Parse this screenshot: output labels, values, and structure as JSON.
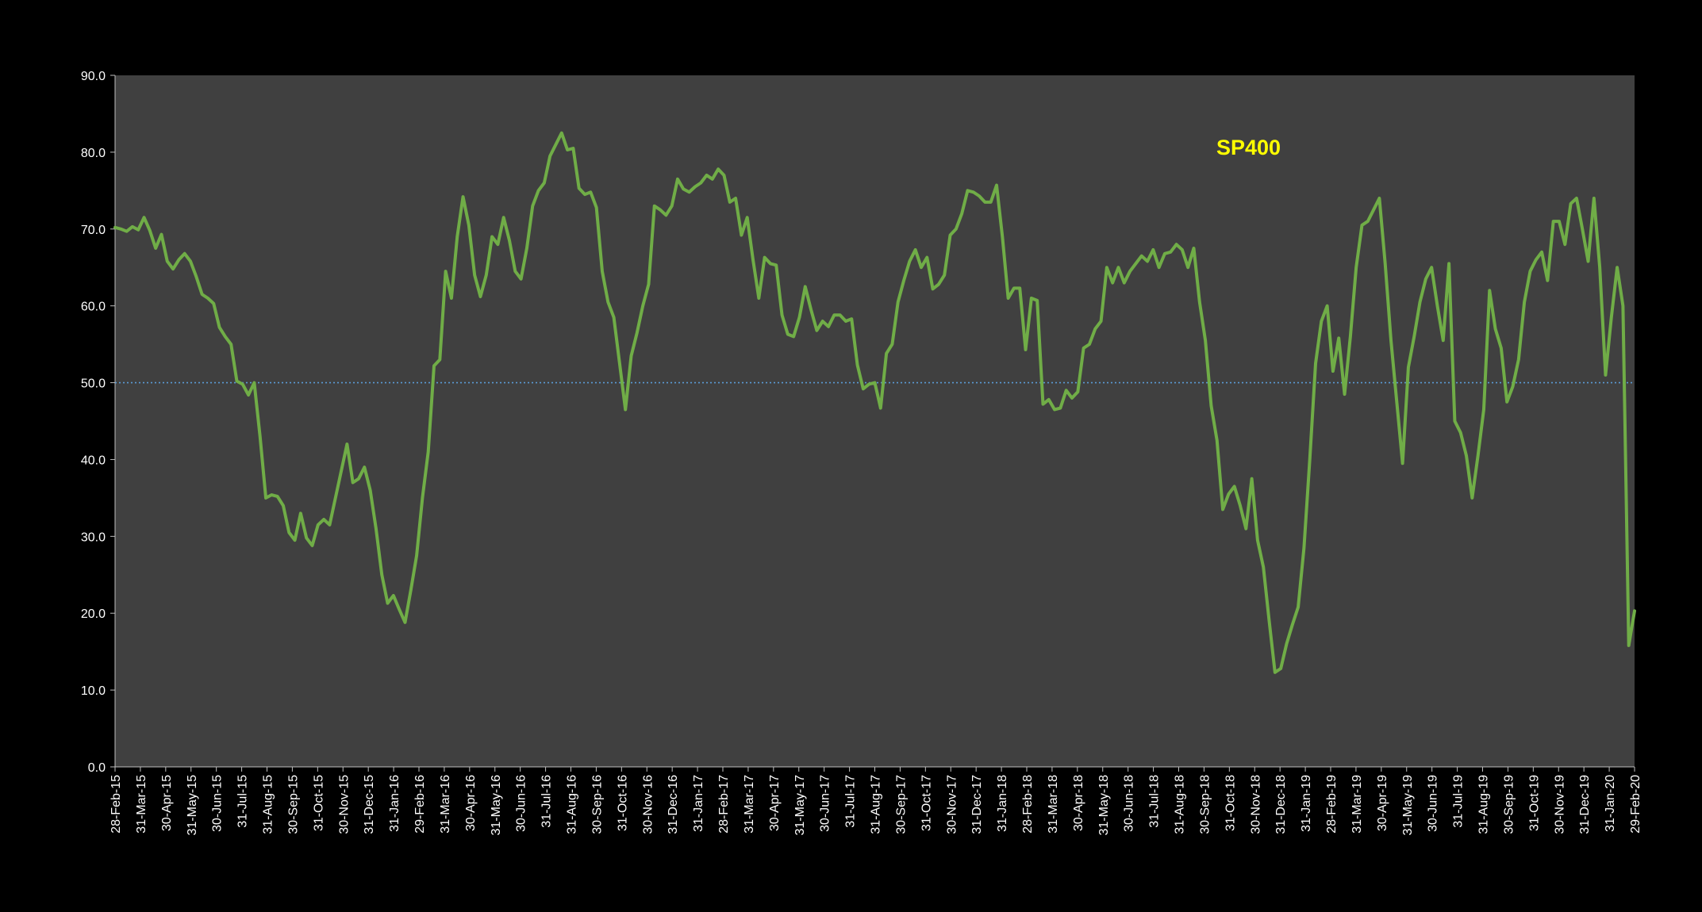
{
  "colors": {
    "background": "#000000",
    "plot_area": "#404040",
    "series_line": "#70ad47",
    "reference_line": "#5b9bd5",
    "text": "#ffffff",
    "series_label": "#ffff00"
  },
  "chart_data": {
    "type": "line",
    "annotation": "SP400",
    "ylim": [
      0,
      90
    ],
    "y_ticks": [
      "0.0",
      "10.0",
      "20.0",
      "30.0",
      "40.0",
      "50.0",
      "60.0",
      "70.0",
      "80.0",
      "90.0"
    ],
    "reference_line": 50,
    "grid": false,
    "legend": "none",
    "x_tick_labels": [
      "28-Feb-15",
      "31-Mar-15",
      "30-Apr-15",
      "31-May-15",
      "30-Jun-15",
      "31-Jul-15",
      "31-Aug-15",
      "30-Sep-15",
      "31-Oct-15",
      "30-Nov-15",
      "31-Dec-15",
      "31-Jan-16",
      "29-Feb-16",
      "31-Mar-16",
      "30-Apr-16",
      "31-May-16",
      "30-Jun-16",
      "31-Jul-16",
      "31-Aug-16",
      "30-Sep-16",
      "31-Oct-16",
      "30-Nov-16",
      "31-Dec-16",
      "31-Jan-17",
      "28-Feb-17",
      "31-Mar-17",
      "30-Apr-17",
      "31-May-17",
      "30-Jun-17",
      "31-Jul-17",
      "31-Aug-17",
      "30-Sep-17",
      "31-Oct-17",
      "30-Nov-17",
      "31-Dec-17",
      "31-Jan-18",
      "28-Feb-18",
      "31-Mar-18",
      "30-Apr-18",
      "31-May-18",
      "30-Jun-18",
      "31-Jul-18",
      "31-Aug-18",
      "30-Sep-18",
      "31-Oct-18",
      "30-Nov-18",
      "31-Dec-18",
      "31-Jan-19",
      "28-Feb-19",
      "31-Mar-19",
      "30-Apr-19",
      "31-May-19",
      "30-Jun-19",
      "31-Jul-19",
      "31-Aug-19",
      "30-Sep-19",
      "31-Oct-19",
      "30-Nov-19",
      "31-Dec-19",
      "31-Jan-20",
      "29-Feb-20"
    ],
    "series": [
      {
        "values": [
          70.2,
          70.0,
          69.7,
          70.3,
          69.9,
          71.5,
          69.8,
          67.5,
          69.3,
          65.8,
          64.8,
          66.0,
          66.8,
          65.8,
          63.8,
          61.5,
          61.0,
          60.3,
          57.2,
          56.0,
          55.0,
          50.2,
          49.8,
          48.4,
          50.0,
          43.0,
          35.0,
          35.4,
          35.2,
          34.0,
          30.5,
          29.5,
          33.0,
          29.8,
          28.8,
          31.5,
          32.2,
          31.5,
          35.0,
          38.5,
          42.0,
          37.0,
          37.5,
          39.0,
          36.0,
          31.0,
          25.0,
          21.3,
          22.3,
          20.5,
          18.8,
          23.0,
          27.5,
          35.0,
          41.0,
          52.2,
          53.0,
          64.5,
          61.0,
          69.0,
          74.2,
          70.5,
          64.0,
          61.2,
          64.0,
          69.0,
          68.0,
          71.5,
          68.5,
          64.5,
          63.5,
          67.5,
          73.0,
          75.0,
          76.0,
          79.5,
          81.0,
          82.5,
          80.3,
          80.5,
          75.3,
          74.5,
          74.8,
          72.8,
          64.5,
          60.5,
          58.5,
          52.5,
          46.5,
          53.5,
          56.5,
          60.0,
          62.8,
          73.0,
          72.5,
          71.8,
          73.0,
          76.5,
          75.2,
          74.8,
          75.5,
          76.0,
          77.0,
          76.5,
          77.8,
          77.0,
          73.5,
          74.0,
          69.2,
          71.5,
          66.0,
          61.0,
          66.3,
          65.5,
          65.3,
          58.8,
          56.3,
          56.0,
          58.5,
          62.5,
          59.5,
          56.8,
          58.0,
          57.3,
          58.8,
          58.8,
          58.0,
          58.3,
          52.3,
          49.2,
          49.8,
          50.0,
          46.7,
          53.8,
          55.0,
          60.5,
          63.3,
          65.8,
          67.3,
          65.0,
          66.3,
          62.2,
          62.8,
          64.0,
          69.2,
          70.0,
          72.0,
          75.0,
          74.8,
          74.3,
          73.5,
          73.5,
          75.7,
          69.0,
          61.0,
          62.3,
          62.3,
          54.3,
          61.0,
          60.7,
          47.2,
          47.8,
          46.5,
          46.7,
          49.0,
          48.0,
          48.8,
          54.5,
          55.0,
          57.0,
          58.0,
          65.0,
          63.0,
          65.0,
          63.0,
          64.5,
          65.5,
          66.5,
          65.8,
          67.3,
          65.0,
          66.8,
          67.0,
          68.0,
          67.3,
          65.0,
          67.5,
          60.5,
          55.5,
          47.0,
          42.5,
          33.5,
          35.5,
          36.5,
          34.0,
          31.0,
          37.5,
          29.5,
          26.0,
          19.0,
          12.3,
          12.8,
          16.0,
          18.5,
          20.8,
          28.5,
          40.0,
          52.5,
          58.0,
          60.0,
          51.5,
          55.8,
          48.5,
          56.0,
          65.0,
          70.5,
          71.0,
          72.5,
          74.0,
          65.5,
          55.5,
          47.5,
          39.5,
          52.0,
          56.0,
          60.5,
          63.5,
          65.0,
          60.0,
          55.5,
          65.5,
          45.0,
          43.5,
          40.5,
          35.0,
          40.5,
          46.5,
          62.0,
          57.0,
          54.5,
          47.5,
          49.5,
          53.0,
          60.5,
          64.5,
          66.0,
          67.0,
          63.3,
          71.0,
          71.0,
          68.0,
          73.3,
          74.0,
          70.0,
          65.8,
          74.0,
          65.0,
          51.0,
          58.5,
          65.0,
          60.0,
          15.8,
          20.3
        ]
      }
    ]
  }
}
